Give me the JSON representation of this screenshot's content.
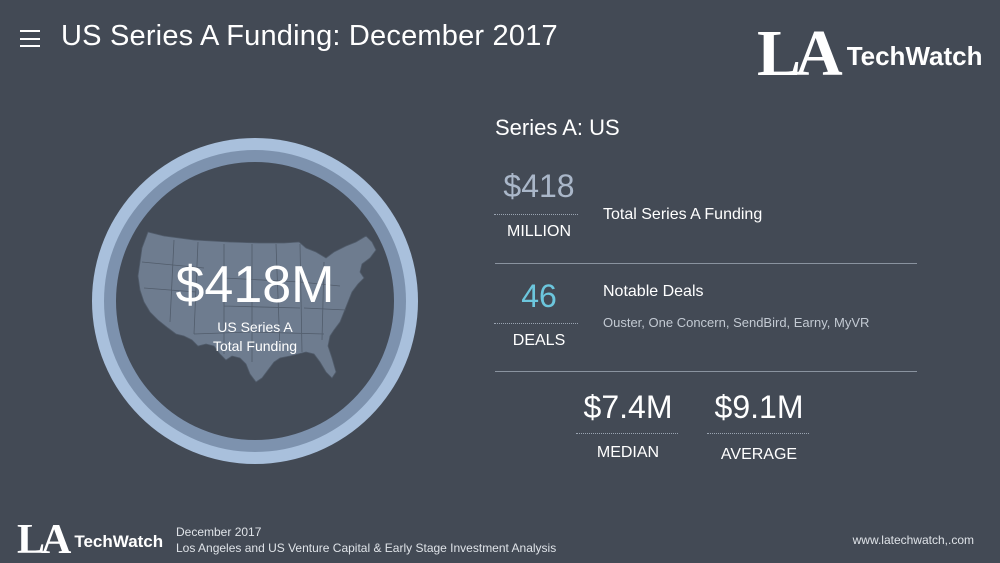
{
  "header": {
    "title": "US Series A Funding: December 2017",
    "menu_icon": "hamburger-menu-icon"
  },
  "logo": {
    "la": "LA",
    "techwatch": "TechWatch"
  },
  "circle": {
    "value": "$418M",
    "caption": "US Series A\nTotal Funding",
    "map_icon": "us-map-icon"
  },
  "panel": {
    "title": "Series A: US",
    "funding": {
      "value": "$418",
      "unit": "MILLION",
      "label": "Total Series A Funding"
    },
    "deals": {
      "value": "46",
      "unit": "DEALS",
      "label": "Notable Deals",
      "names": "Ouster, One Concern, SendBird, Earny, MyVR"
    },
    "median": {
      "value": "$7.4M",
      "unit": "MEDIAN"
    },
    "average": {
      "value": "$9.1M",
      "unit": "AVERAGE"
    }
  },
  "footer": {
    "date": "December 2017",
    "description": "Los Angeles and US Venture Capital & Early Stage Investment Analysis",
    "url": "www.latechwatch,.com"
  },
  "colors": {
    "background": "#434a55",
    "ring_outer": "#a9c0dc",
    "ring_inner": "#7d92ae",
    "funding_value": "#aab7c9",
    "deals_value": "#6cc6dd"
  }
}
